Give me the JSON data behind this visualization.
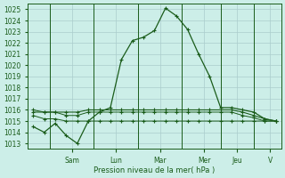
{
  "xlabel": "Pression niveau de la mer( hPa )",
  "bg_color": "#cceee8",
  "grid_color": "#aacccc",
  "line_color": "#1a5c1a",
  "ylim": [
    1012.5,
    1025.5
  ],
  "yticks": [
    1013,
    1014,
    1015,
    1016,
    1017,
    1018,
    1019,
    1020,
    1021,
    1022,
    1023,
    1024,
    1025
  ],
  "day_labels": [
    "Sam",
    "Lun",
    "Mar",
    "Mer",
    "Jeu",
    "V"
  ],
  "n_points": 23,
  "day_tick_positions": [
    3.5,
    7.5,
    11.5,
    15.5,
    18.5,
    21.5
  ],
  "day_vline_positions": [
    1.5,
    5.5,
    9.5,
    13.5,
    17.0,
    20.0
  ],
  "series_main": [
    1014.5,
    1014.0,
    1014.8,
    1013.7,
    1013.0,
    1015.0,
    1015.8,
    1016.2,
    1020.5,
    1022.2,
    1022.5,
    1023.1,
    1025.1,
    1024.4,
    1023.2,
    1021.0,
    1019.0,
    1016.2,
    1016.2,
    1016.0,
    1015.8,
    1015.2,
    1015.0
  ],
  "series_flat1": [
    1015.8,
    1015.8,
    1015.8,
    1015.8,
    1015.8,
    1016.0,
    1016.0,
    1016.0,
    1016.0,
    1016.0,
    1016.0,
    1016.0,
    1016.0,
    1016.0,
    1016.0,
    1016.0,
    1016.0,
    1016.0,
    1016.0,
    1015.8,
    1015.5,
    1015.2,
    1015.0
  ],
  "series_flat2": [
    1015.5,
    1015.2,
    1015.2,
    1015.0,
    1015.0,
    1015.0,
    1015.0,
    1015.0,
    1015.0,
    1015.0,
    1015.0,
    1015.0,
    1015.0,
    1015.0,
    1015.0,
    1015.0,
    1015.0,
    1015.0,
    1015.0,
    1015.0,
    1015.0,
    1015.0,
    1015.0
  ],
  "series_flat3": [
    1016.0,
    1015.8,
    1015.8,
    1015.5,
    1015.5,
    1015.8,
    1015.8,
    1015.8,
    1015.8,
    1015.8,
    1015.8,
    1015.8,
    1015.8,
    1015.8,
    1015.8,
    1015.8,
    1015.8,
    1015.8,
    1015.8,
    1015.5,
    1015.3,
    1015.0,
    1015.0
  ]
}
